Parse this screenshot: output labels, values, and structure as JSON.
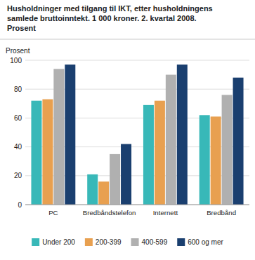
{
  "chart_data": {
    "type": "bar",
    "title": "Husholdninger med tilgang til IKT, etter husholdningens\nsamlede bruttoinntekt. 1 000 kroner. 2. kvartal 2008.\nProsent",
    "ylabel": "Prosent",
    "categories": [
      "PC",
      "Bredbåndstelefon",
      "Internett",
      "Bredbånd"
    ],
    "series": [
      {
        "name": "Under 200",
        "color": "#38B8B8",
        "values": [
          72,
          21,
          69,
          62
        ]
      },
      {
        "name": "200-399",
        "color": "#E8A050",
        "values": [
          73,
          16,
          72,
          61
        ]
      },
      {
        "name": "400-599",
        "color": "#B0B0B0",
        "values": [
          94,
          35,
          90,
          76
        ]
      },
      {
        "name": "600 og mer",
        "color": "#1A3F6F",
        "values": [
          97,
          42,
          97,
          88
        ]
      }
    ],
    "ylim": [
      0,
      100
    ],
    "yticks": [
      0,
      20,
      40,
      60,
      80,
      100
    ],
    "grid": true,
    "legend": "bottom"
  }
}
